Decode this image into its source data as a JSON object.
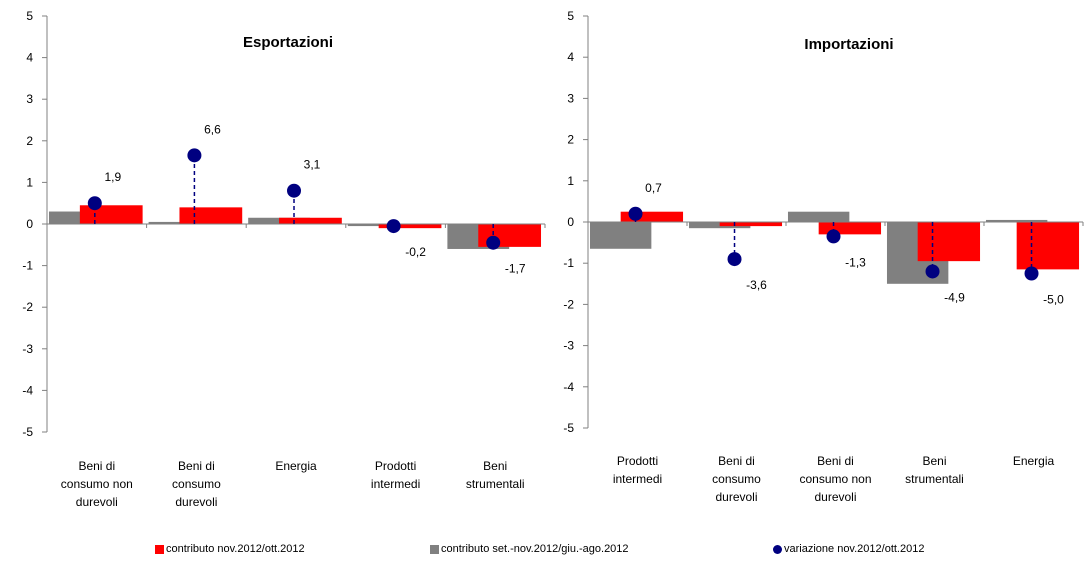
{
  "colors": {
    "contributo_mese": "#ff0000",
    "contributo_trimestre": "#808080",
    "variazione": "#000080",
    "axis": "#808080"
  },
  "legend": {
    "items": [
      {
        "label": "contributo nov.2012/ott.2012",
        "symbol": "bar",
        "color": "#ff0000"
      },
      {
        "label": "contributo set.-nov.2012/giu.-ago.2012",
        "symbol": "bar",
        "color": "#808080"
      },
      {
        "label": "variazione nov.2012/ott.2012",
        "symbol": "dot",
        "color": "#000080"
      }
    ]
  },
  "chart_data": [
    {
      "type": "bar",
      "title": "Esportazioni",
      "ylim": [
        -5,
        5
      ],
      "yticks": [
        "5",
        "4",
        "3",
        "2",
        "1",
        "0",
        "-1",
        "-2",
        "-3",
        "-4",
        "-5"
      ],
      "categories": [
        [
          "Beni di",
          "consumo non",
          "durevoli"
        ],
        [
          "Beni di",
          "consumo",
          "durevoli"
        ],
        [
          "Energia"
        ],
        [
          "Prodotti",
          "intermedi"
        ],
        [
          "Beni",
          "strumentali"
        ]
      ],
      "series": [
        {
          "name": "contributo set.-nov.2012/giu.-ago.2012",
          "kind": "bar",
          "values": [
            0.3,
            0.05,
            0.15,
            -0.05,
            -0.6
          ]
        },
        {
          "name": "contributo nov.2012/ott.2012",
          "kind": "bar",
          "values": [
            0.45,
            0.4,
            0.15,
            -0.1,
            -0.55
          ]
        },
        {
          "name": "variazione nov.2012/ott.2012",
          "kind": "point",
          "values": [
            0.5,
            1.65,
            0.8,
            -0.05,
            -0.45
          ],
          "labels": [
            "1,9",
            "6,6",
            "3,1",
            "-0,2",
            "-1,7"
          ]
        }
      ],
      "grid": false
    },
    {
      "type": "bar",
      "title": "Importazioni",
      "ylim": [
        -5,
        5
      ],
      "yticks": [
        "5",
        "4",
        "3",
        "2",
        "1",
        "0",
        "-1",
        "-2",
        "-3",
        "-4",
        "-5"
      ],
      "categories": [
        [
          "Prodotti",
          "intermedi"
        ],
        [
          "Beni di",
          "consumo",
          "durevoli"
        ],
        [
          "Beni di",
          "consumo non",
          "durevoli"
        ],
        [
          "Beni",
          "strumentali"
        ],
        [
          "Energia"
        ]
      ],
      "series": [
        {
          "name": "contributo set.-nov.2012/giu.-ago.2012",
          "kind": "bar",
          "values": [
            -0.65,
            -0.15,
            0.25,
            -1.5,
            0.05
          ]
        },
        {
          "name": "contributo nov.2012/ott.2012",
          "kind": "bar",
          "values": [
            0.25,
            -0.1,
            -0.3,
            -0.95,
            -1.15
          ]
        },
        {
          "name": "variazione nov.2012/ott.2012",
          "kind": "point",
          "values": [
            0.2,
            -0.9,
            -0.35,
            -1.2,
            -1.25
          ],
          "labels": [
            "0,7",
            "-3,6",
            "-1,3",
            "-4,9",
            "-5,0"
          ]
        }
      ],
      "grid": false
    }
  ]
}
